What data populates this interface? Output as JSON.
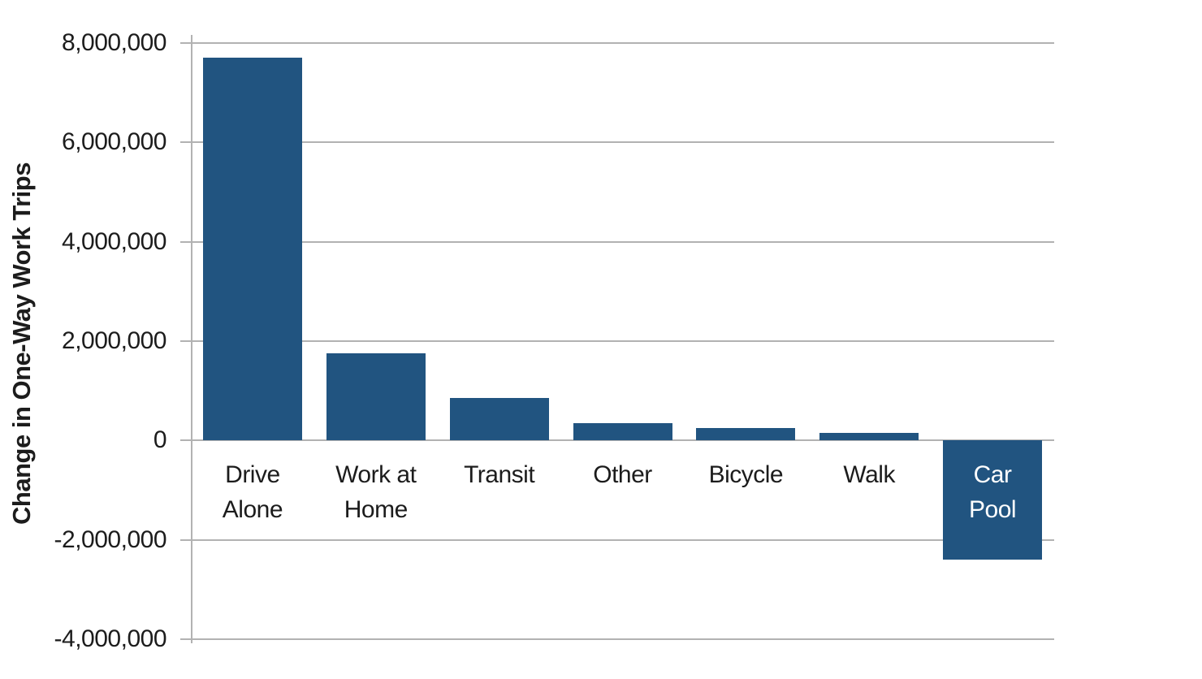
{
  "chart_data": {
    "type": "bar",
    "title": "",
    "xlabel": "",
    "ylabel": "Change in One-Way Work Trips",
    "categories": [
      "Drive Alone",
      "Work at Home",
      "Transit",
      "Other",
      "Bicycle",
      "Walk",
      "Car Pool"
    ],
    "category_label_lines": [
      [
        "Drive",
        "Alone"
      ],
      [
        "Work at",
        "Home"
      ],
      [
        "Transit"
      ],
      [
        "Other"
      ],
      [
        "Bicycle"
      ],
      [
        "Walk"
      ],
      [
        "Car",
        "Pool"
      ]
    ],
    "values": [
      7700000,
      1750000,
      850000,
      350000,
      250000,
      150000,
      -2400000
    ],
    "ylim": [
      -4000000,
      8000000
    ],
    "yticks": [
      {
        "value": 8000000,
        "label": "8,000,000"
      },
      {
        "value": 6000000,
        "label": "6,000,000"
      },
      {
        "value": 4000000,
        "label": "4,000,000"
      },
      {
        "value": 2000000,
        "label": "2,000,000"
      },
      {
        "value": 0,
        "label": "0"
      },
      {
        "value": -2000000,
        "label": "-2,000,000"
      },
      {
        "value": -4000000,
        "label": "-4,000,000"
      }
    ],
    "grid": true,
    "legend": "none",
    "bar_color": "#215480",
    "axis_color": "#b2b2b2",
    "text_color": "#1c1c1c",
    "negative_bar_label_color": "#ffffff",
    "background_color": "#ffffff"
  }
}
